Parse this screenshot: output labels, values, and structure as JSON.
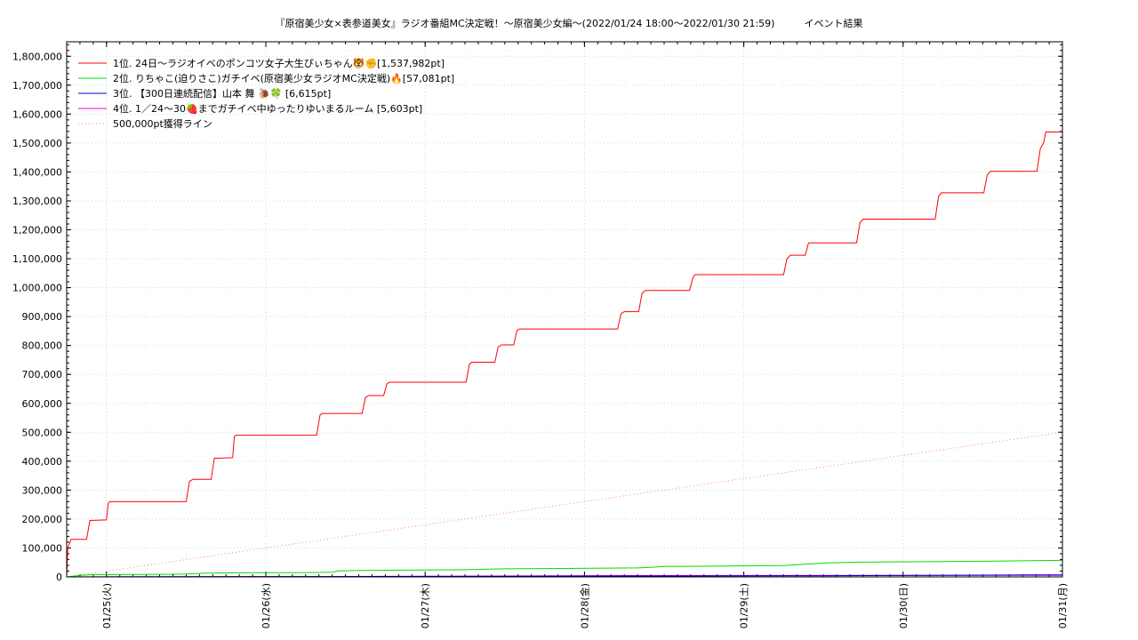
{
  "chart_data": {
    "type": "line",
    "title": "『原宿美少女×表参道美女』ラジオ番組MC決定戦！～原宿美少女編～(2022/01/24 18:00～2022/01/30 21:59)　　　イベント結果",
    "xlabel": "",
    "ylabel": "",
    "ylim": [
      0,
      1850000
    ],
    "xlim": [
      "2022-01-24 18:00",
      "2022-01-31 00:00"
    ],
    "x_ticks": [
      "01/25(火)",
      "01/26(水)",
      "01/27(木)",
      "01/28(金)",
      "01/29(土)",
      "01/30(日)",
      "01/31(月)"
    ],
    "y_ticks": [
      "0",
      "100,000",
      "200,000",
      "300,000",
      "400,000",
      "500,000",
      "600,000",
      "700,000",
      "800,000",
      "900,000",
      "1,000,000",
      "1,100,000",
      "1,200,000",
      "1,300,000",
      "1,400,000",
      "1,500,000",
      "1,600,000",
      "1,700,000",
      "1,800,000"
    ],
    "grid": true,
    "legend_position": "top-left",
    "series": [
      {
        "name": "1位. 24日〜ラジオイベのポンコツ女子大生ぴぃちゃん🐯✊[1,537,982pt]",
        "color": "#ff0000",
        "style": "solid",
        "points": [
          [
            "2022-01-24 18:00",
            0
          ],
          [
            "2022-01-24 18:10",
            100000
          ],
          [
            "2022-01-24 18:40",
            130000
          ],
          [
            "2022-01-24 21:00",
            130000
          ],
          [
            "2022-01-24 21:30",
            195000
          ],
          [
            "2022-01-25 00:00",
            197000
          ],
          [
            "2022-01-25 00:15",
            255000
          ],
          [
            "2022-01-25 00:30",
            260000
          ],
          [
            "2022-01-25 12:00",
            260000
          ],
          [
            "2022-01-25 12:30",
            330000
          ],
          [
            "2022-01-25 13:00",
            337000
          ],
          [
            "2022-01-25 15:45",
            337000
          ],
          [
            "2022-01-25 16:15",
            410000
          ],
          [
            "2022-01-25 19:00",
            412000
          ],
          [
            "2022-01-25 19:15",
            485000
          ],
          [
            "2022-01-25 19:30",
            490000
          ],
          [
            "2022-01-26 07:40",
            490000
          ],
          [
            "2022-01-26 08:10",
            560000
          ],
          [
            "2022-01-26 08:30",
            565000
          ],
          [
            "2022-01-26 14:30",
            565000
          ],
          [
            "2022-01-26 15:00",
            620000
          ],
          [
            "2022-01-26 15:30",
            627000
          ],
          [
            "2022-01-26 17:45",
            627000
          ],
          [
            "2022-01-26 18:15",
            668000
          ],
          [
            "2022-01-26 18:40",
            673000
          ],
          [
            "2022-01-27 06:10",
            673000
          ],
          [
            "2022-01-27 06:40",
            735000
          ],
          [
            "2022-01-27 07:00",
            742000
          ],
          [
            "2022-01-27 10:30",
            742000
          ],
          [
            "2022-01-27 11:00",
            795000
          ],
          [
            "2022-01-27 11:30",
            802000
          ],
          [
            "2022-01-27 13:20",
            802000
          ],
          [
            "2022-01-27 13:50",
            852000
          ],
          [
            "2022-01-27 14:10",
            857000
          ],
          [
            "2022-01-28 05:00",
            857000
          ],
          [
            "2022-01-28 05:30",
            910000
          ],
          [
            "2022-01-28 06:00",
            917000
          ],
          [
            "2022-01-28 08:10",
            917000
          ],
          [
            "2022-01-28 08:40",
            980000
          ],
          [
            "2022-01-28 09:10",
            990000
          ],
          [
            "2022-01-28 15:50",
            990000
          ],
          [
            "2022-01-28 16:20",
            1035000
          ],
          [
            "2022-01-28 16:40",
            1045000
          ],
          [
            "2022-01-29 06:00",
            1045000
          ],
          [
            "2022-01-29 06:30",
            1100000
          ],
          [
            "2022-01-29 07:00",
            1112000
          ],
          [
            "2022-01-29 09:15",
            1112000
          ],
          [
            "2022-01-29 09:45",
            1155000
          ],
          [
            "2022-01-29 17:00",
            1155000
          ],
          [
            "2022-01-29 17:30",
            1225000
          ],
          [
            "2022-01-29 18:00",
            1237000
          ],
          [
            "2022-01-30 04:50",
            1237000
          ],
          [
            "2022-01-30 05:20",
            1315000
          ],
          [
            "2022-01-30 05:45",
            1328000
          ],
          [
            "2022-01-30 12:10",
            1328000
          ],
          [
            "2022-01-30 12:40",
            1390000
          ],
          [
            "2022-01-30 13:10",
            1402000
          ],
          [
            "2022-01-30 20:10",
            1402000
          ],
          [
            "2022-01-30 20:40",
            1480000
          ],
          [
            "2022-01-30 21:10",
            1500000
          ],
          [
            "2022-01-30 21:30",
            1537982
          ],
          [
            "2022-01-30 23:59",
            1537982
          ]
        ]
      },
      {
        "name": "2位. りちゃこ(迫りさこ)ガチイベ(原宿美少女ラジオMC決定戦)🔥[57,081pt]",
        "color": "#00dd00",
        "style": "solid",
        "points": [
          [
            "2022-01-24 18:00",
            0
          ],
          [
            "2022-01-24 20:00",
            5000
          ],
          [
            "2022-01-24 22:00",
            8000
          ],
          [
            "2022-01-25 09:00",
            9000
          ],
          [
            "2022-01-25 12:00",
            10000
          ],
          [
            "2022-01-25 15:00",
            13000
          ],
          [
            "2022-01-25 20:00",
            14000
          ],
          [
            "2022-01-26 07:00",
            15000
          ],
          [
            "2022-01-26 10:00",
            16000
          ],
          [
            "2022-01-26 11:00",
            21000
          ],
          [
            "2022-01-26 14:00",
            22000
          ],
          [
            "2022-01-27 06:00",
            25000
          ],
          [
            "2022-01-27 12:00",
            28000
          ],
          [
            "2022-01-28 08:00",
            31000
          ],
          [
            "2022-01-28 10:00",
            33000
          ],
          [
            "2022-01-28 12:00",
            36000
          ],
          [
            "2022-01-29 06:00",
            39000
          ],
          [
            "2022-01-29 10:00",
            45000
          ],
          [
            "2022-01-29 13:00",
            49000
          ],
          [
            "2022-01-29 18:00",
            51000
          ],
          [
            "2022-01-30 12:00",
            54000
          ],
          [
            "2022-01-30 23:59",
            57081
          ]
        ]
      },
      {
        "name": "3位. 【300日連続配信】山本 舞 🐌🍀 [6,615pt]",
        "color": "#0000cc",
        "style": "solid",
        "points": [
          [
            "2022-01-24 18:00",
            0
          ],
          [
            "2022-01-26 00:00",
            1000
          ],
          [
            "2022-01-27 12:00",
            2000
          ],
          [
            "2022-01-28 12:00",
            3000
          ],
          [
            "2022-01-29 12:00",
            4000
          ],
          [
            "2022-01-30 00:00",
            5000
          ],
          [
            "2022-01-30 18:00",
            6615
          ],
          [
            "2022-01-30 23:59",
            6615
          ]
        ]
      },
      {
        "name": "4位. 1／24〜30🍓までガチイベ中ゆったりゆいまるルーム [5,603pt]",
        "color": "#ee00ee",
        "style": "solid",
        "points": [
          [
            "2022-01-24 18:00",
            0
          ],
          [
            "2022-01-25 12:00",
            1000
          ],
          [
            "2022-01-27 00:00",
            2000
          ],
          [
            "2022-01-28 06:00",
            4500
          ],
          [
            "2022-01-29 00:00",
            5000
          ],
          [
            "2022-01-30 23:59",
            5603
          ]
        ]
      },
      {
        "name": "500,000pt獲得ライン",
        "color": "#ff8080",
        "style": "dotted",
        "points": [
          [
            "2022-01-24 18:00",
            0
          ],
          [
            "2022-01-30 23:59",
            500000
          ]
        ]
      }
    ]
  }
}
